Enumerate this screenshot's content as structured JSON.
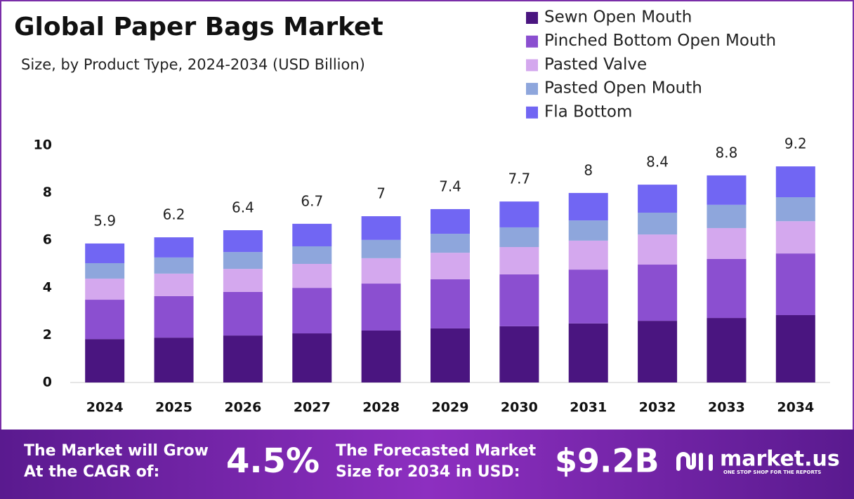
{
  "chart_data": {
    "type": "stacked_bar",
    "title": "Global Paper Bags Market",
    "subtitle": "Size, by Product Type, 2024-2034 (USD Billion)",
    "categories": [
      "2024",
      "2025",
      "2026",
      "2027",
      "2028",
      "2029",
      "2030",
      "2031",
      "2032",
      "2033",
      "2034"
    ],
    "series": [
      {
        "name": "Sewn Open Mouth",
        "color": "#4a1580",
        "values": [
          1.83,
          1.89,
          1.98,
          2.07,
          2.19,
          2.28,
          2.37,
          2.49,
          2.6,
          2.72,
          2.84
        ]
      },
      {
        "name": "Pinched Bottom Open Mouth",
        "color": "#8b4fd0",
        "values": [
          1.66,
          1.75,
          1.84,
          1.92,
          1.98,
          2.07,
          2.19,
          2.27,
          2.37,
          2.49,
          2.6
        ]
      },
      {
        "name": "Pasted Valve",
        "color": "#d4a8ee",
        "values": [
          0.89,
          0.95,
          0.97,
          1.01,
          1.07,
          1.12,
          1.15,
          1.22,
          1.27,
          1.3,
          1.36
        ]
      },
      {
        "name": "Pasted Open Mouth",
        "color": "#8ea6dc",
        "values": [
          0.65,
          0.68,
          0.71,
          0.74,
          0.77,
          0.8,
          0.83,
          0.85,
          0.92,
          0.98,
          1.01
        ]
      },
      {
        "name": "Fla Bottom",
        "color": "#7166f3",
        "values": [
          0.83,
          0.85,
          0.92,
          0.95,
          1.0,
          1.04,
          1.09,
          1.16,
          1.18,
          1.24,
          1.3
        ]
      }
    ],
    "totals": [
      5.9,
      6.2,
      6.4,
      6.7,
      7.0,
      7.4,
      7.7,
      8.0,
      8.4,
      8.8,
      9.2
    ],
    "ylim": [
      0,
      10
    ],
    "yticks": [
      0,
      2,
      4,
      6,
      8,
      10
    ],
    "grid": false,
    "legend": "top-right"
  },
  "banner": {
    "cagr_text": [
      "The Market will Grow",
      "At the CAGR of:"
    ],
    "cagr": "4.5%",
    "size_text": [
      "The Forecasted Market",
      "Size for 2034 in USD:"
    ],
    "size": "$9.2B",
    "brand": "market.us",
    "tagline": "ONE STOP SHOP FOR THE REPORTS"
  }
}
